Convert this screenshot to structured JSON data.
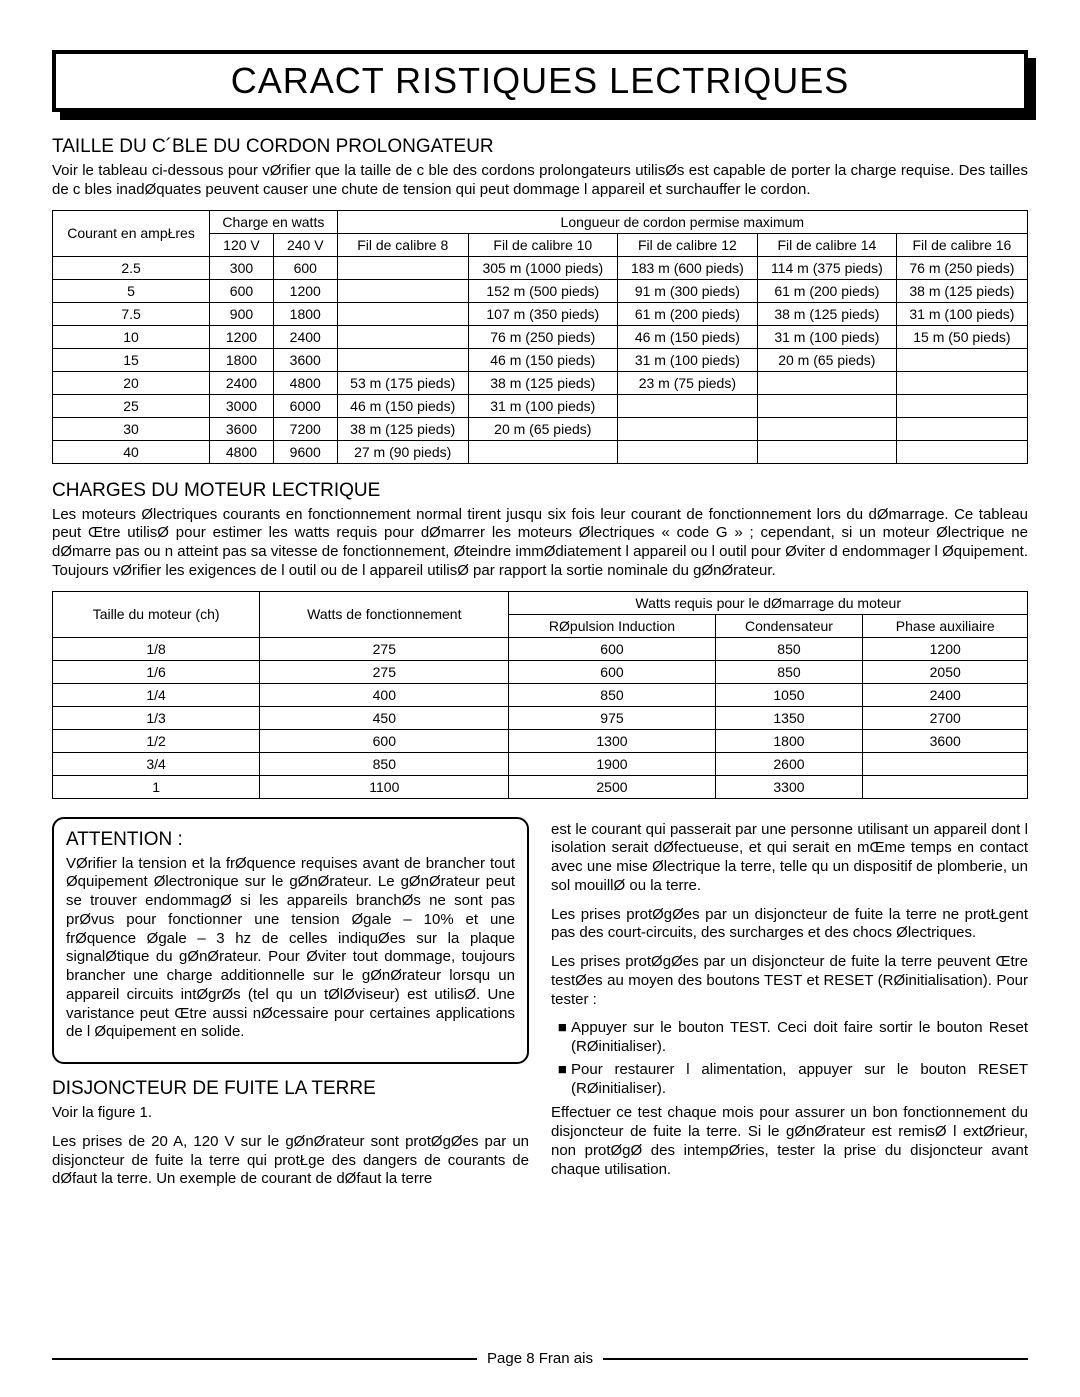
{
  "main_title": "CARACT RISTIQUES LECTRIQUES",
  "section1": {
    "heading": "TAILLE DU C´BLE DU CORDON PROLONGATEUR",
    "intro": "Voir le tableau ci-dessous pour vØrifier que la taille de c ble des cordons prolongateurs utilisØs est capable de porter la charge requise. Des tailles de c bles inadØquates peuvent causer une chute de tension qui peut dommage l appareil et surchauffer le cordon.",
    "h_courant": "Courant en ampŁres",
    "h_charge": "Charge en watts",
    "h_longueur": "Longueur de cordon permise maximum",
    "h_120v": "120 V",
    "h_240v": "240 V",
    "h_g8": "Fil de calibre 8",
    "h_g10": "Fil de calibre 10",
    "h_g12": "Fil de calibre 12",
    "h_g14": "Fil de calibre 14",
    "h_g16": "Fil de calibre 16",
    "rows": [
      {
        "a": "2.5",
        "w120": "300",
        "w240": "600",
        "g8": "",
        "g10": "305 m (1000 pieds)",
        "g12": "183 m (600 pieds)",
        "g14": "114 m (375 pieds)",
        "g16": "76 m (250 pieds)"
      },
      {
        "a": "5",
        "w120": "600",
        "w240": "1200",
        "g8": "",
        "g10": "152 m (500 pieds)",
        "g12": "91 m (300 pieds)",
        "g14": "61 m (200 pieds)",
        "g16": "38 m (125 pieds)"
      },
      {
        "a": "7.5",
        "w120": "900",
        "w240": "1800",
        "g8": "",
        "g10": "107 m (350 pieds)",
        "g12": "61 m (200 pieds)",
        "g14": "38 m (125 pieds)",
        "g16": "31 m (100 pieds)"
      },
      {
        "a": "10",
        "w120": "1200",
        "w240": "2400",
        "g8": "",
        "g10": "76 m (250 pieds)",
        "g12": "46 m (150 pieds)",
        "g14": "31 m (100 pieds)",
        "g16": "15 m (50 pieds)"
      },
      {
        "a": "15",
        "w120": "1800",
        "w240": "3600",
        "g8": "",
        "g10": "46 m (150 pieds)",
        "g12": "31 m (100 pieds)",
        "g14": "20 m (65 pieds)",
        "g16": ""
      },
      {
        "a": "20",
        "w120": "2400",
        "w240": "4800",
        "g8": "53 m (175 pieds)",
        "g10": "38 m (125 pieds)",
        "g12": "23 m (75 pieds)",
        "g14": "",
        "g16": ""
      },
      {
        "a": "25",
        "w120": "3000",
        "w240": "6000",
        "g8": "46 m (150 pieds)",
        "g10": "31 m (100 pieds)",
        "g12": "",
        "g14": "",
        "g16": ""
      },
      {
        "a": "30",
        "w120": "3600",
        "w240": "7200",
        "g8": "38 m (125 pieds)",
        "g10": "20 m (65 pieds)",
        "g12": "",
        "g14": "",
        "g16": ""
      },
      {
        "a": "40",
        "w120": "4800",
        "w240": "9600",
        "g8": "27 m (90 pieds)",
        "g10": "",
        "g12": "",
        "g14": "",
        "g16": ""
      }
    ]
  },
  "section2": {
    "heading": "CHARGES DU MOTEUR LECTRIQUE",
    "intro": "Les moteurs Ølectriques courants en fonctionnement normal tirent jusqu six fois leur courant de fonctionnement lors du dØmarrage. Ce tableau peut Œtre utilisØ pour estimer les watts requis pour dØmarrer les moteurs Ølectriques « code G » ; cependant, si un moteur Ølectrique ne dØmarre pas ou n atteint pas sa vitesse de fonctionnement, Øteindre immØdiatement l appareil ou l outil pour Øviter d endommager l Øquipement. Toujours vØrifier les exigences de l outil ou de l appareil utilisØ par rapport la sortie nominale du gØnØrateur.",
    "h_size": "Taille du moteur (ch)",
    "h_wfonc": "Watts de fonctionnement",
    "h_wdem": "Watts requis pour le dØmarrage du moteur",
    "h_rep": "RØpulsion Induction",
    "h_cond": "Condensateur",
    "h_phase": "Phase auxiliaire",
    "rows": [
      {
        "s": "1/8",
        "wf": "275",
        "r": "600",
        "c": "850",
        "p": "1200"
      },
      {
        "s": "1/6",
        "wf": "275",
        "r": "600",
        "c": "850",
        "p": "2050"
      },
      {
        "s": "1/4",
        "wf": "400",
        "r": "850",
        "c": "1050",
        "p": "2400"
      },
      {
        "s": "1/3",
        "wf": "450",
        "r": "975",
        "c": "1350",
        "p": "2700"
      },
      {
        "s": "1/2",
        "wf": "600",
        "r": "1300",
        "c": "1800",
        "p": "3600"
      },
      {
        "s": "3/4",
        "wf": "850",
        "r": "1900",
        "c": "2600",
        "p": ""
      },
      {
        "s": "1",
        "wf": "1100",
        "r": "2500",
        "c": "3300",
        "p": ""
      }
    ]
  },
  "attention": {
    "heading": "ATTENTION :",
    "body": "VØrifier la tension et la frØquence requises avant de brancher tout Øquipement Ølectronique sur le gØnØrateur. Le gØnØrateur peut se trouver endommagØ si les appareils branchØs ne sont pas prØvus pour fonctionner une tension Øgale – 10% et une frØquence Øgale – 3 hz de celles indiquØes sur la plaque signalØtique du gØnØrateur. Pour Øviter tout dommage, toujours brancher une charge additionnelle sur le gØnØrateur lorsqu un appareil circuits intØgrØs (tel qu un tØlØviseur) est utilisØ. Une varistance peut Œtre aussi nØcessaire pour certaines applications de l Øquipement en solide."
  },
  "gfci": {
    "heading": "DISJONCTEUR DE FUITE LA TERRE",
    "fig": "Voir la figure 1.",
    "p1": "Les prises de 20 A, 120 V sur le gØnØrateur sont protØgØes par un disjoncteur de fuite la terre qui protŁge des dangers de courants de dØfaut la terre. Un exemple de courant de dØfaut la terre",
    "p2": "est le courant qui passerait par une personne utilisant un appareil dont l isolation serait dØfectueuse, et qui serait en mŒme temps en contact avec une mise Ølectrique la terre, telle qu un dispositif de plomberie, un sol mouillØ ou la terre.",
    "p3": "Les prises protØgØes par un disjoncteur de fuite la terre ne protŁgent pas des court-circuits, des surcharges et des chocs Ølectriques.",
    "p4": "Les prises protØgØes par un disjoncteur de fuite la terre peuvent Œtre testØes au moyen des boutons TEST et RESET (RØinitialisation). Pour tester :",
    "li1": "Appuyer sur le bouton TEST. Ceci doit faire sortir le bouton Reset (RØinitialiser).",
    "li2": "Pour restaurer l alimentation, appuyer sur le bouton RESET (RØinitialiser).",
    "p5": "Effectuer ce test chaque mois pour assurer un bon fonctionnement du disjoncteur de fuite la terre. Si le gØnØrateur est remisØ l extØrieur, non protØgØ des intempØries, tester la prise du disjoncteur avant chaque utilisation."
  },
  "footer": "Page 8 Fran ais"
}
